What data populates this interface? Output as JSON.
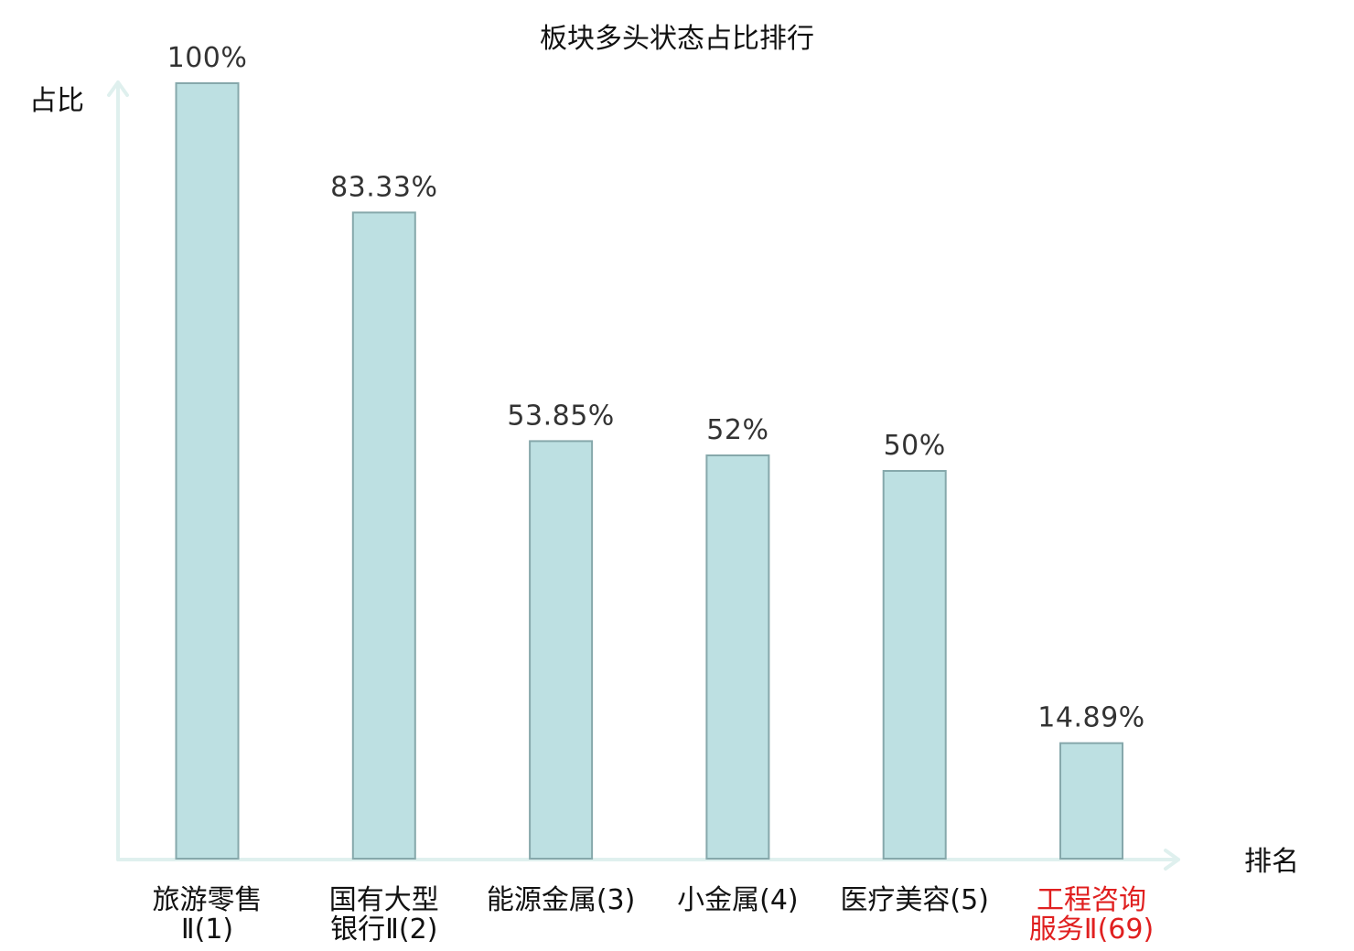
{
  "chart_data": {
    "type": "bar",
    "title": "板块多头状态占比排行",
    "ylabel": "占比",
    "xlabel": "排名",
    "ylim": [
      0,
      100
    ],
    "grid": false,
    "categories": [
      {
        "lines": [
          "旅游零售",
          "Ⅱ(1)"
        ],
        "highlight": false
      },
      {
        "lines": [
          "国有大型",
          "银行Ⅱ(2)"
        ],
        "highlight": false
      },
      {
        "lines": [
          "能源金属(3)"
        ],
        "highlight": false
      },
      {
        "lines": [
          "小金属(4)"
        ],
        "highlight": false
      },
      {
        "lines": [
          "医疗美容(5)"
        ],
        "highlight": false
      },
      {
        "lines": [
          "工程咨询",
          "服务Ⅱ(69)"
        ],
        "highlight": true
      }
    ],
    "values": [
      100,
      83.33,
      53.85,
      52,
      50,
      14.89
    ],
    "value_labels": [
      "100%",
      "83.33%",
      "53.85%",
      "52%",
      "50%",
      "14.89%"
    ],
    "colors": {
      "bar_fill": "#bde0e2",
      "bar_stroke": "#86a8ab",
      "axis": "#dff0ee",
      "highlight_text": "#e02020"
    }
  }
}
